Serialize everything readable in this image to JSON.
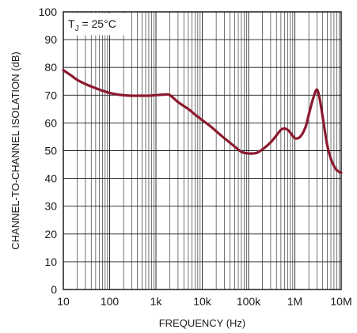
{
  "chart_data": {
    "type": "line",
    "title": "",
    "xlabel": "FREQUENCY (Hz)",
    "ylabel": "CHANNEL-TO-CHANNEL ISOLATION (dB)",
    "xscale": "log",
    "xlim": [
      10,
      10000000
    ],
    "ylim": [
      0,
      100
    ],
    "grid": true,
    "x_tick_labels": [
      "10",
      "100",
      "1k",
      "10k",
      "100k",
      "1M",
      "10M"
    ],
    "y_tick_labels": [
      "0",
      "10",
      "20",
      "30",
      "40",
      "50",
      "60",
      "70",
      "80",
      "90",
      "100"
    ],
    "annotation": {
      "main": "T",
      "sub": "J",
      "rest": " = 25°C"
    },
    "line_color": "#8b1a2e",
    "series": [
      {
        "x": [
          10,
          15,
          20,
          30,
          50,
          70,
          100,
          150,
          200,
          300,
          500,
          700,
          1000,
          1500,
          2000,
          3000,
          5000,
          7000,
          10000,
          15000,
          20000,
          30000,
          50000,
          70000,
          100000,
          150000,
          200000,
          300000,
          400000,
          500000,
          600000,
          700000,
          800000,
          1000000,
          1300000,
          1700000,
          2000000,
          2500000,
          3000000,
          3500000,
          4000000,
          5000000,
          6000000,
          7000000,
          8000000,
          10000000
        ],
        "y": [
          79,
          77,
          75.5,
          74,
          72.5,
          71.6,
          70.8,
          70.2,
          70,
          69.8,
          69.8,
          69.8,
          70,
          70.2,
          70,
          67.5,
          65,
          63,
          61,
          58.8,
          57,
          54.5,
          51.5,
          49.6,
          49,
          49.2,
          50.5,
          53,
          55.5,
          57.5,
          58,
          57.5,
          56.5,
          54.5,
          55,
          58.5,
          63,
          69,
          72,
          68,
          62,
          52,
          47,
          44.5,
          43,
          42
        ]
      }
    ]
  }
}
